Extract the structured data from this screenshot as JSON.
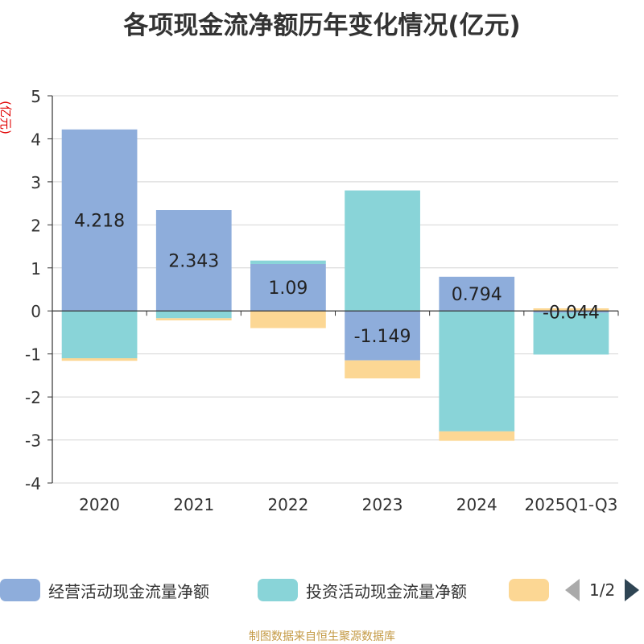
{
  "chart_data": {
    "type": "bar",
    "stacked": true,
    "title": "各项现金流净额历年变化情况(亿元)",
    "ylabel": "(亿元)",
    "xlabel": "",
    "ylim": [
      -4,
      5
    ],
    "yticks": [
      5,
      4,
      3,
      2,
      1,
      0,
      -1,
      -2,
      -3,
      -4
    ],
    "grid": true,
    "categories": [
      "2020",
      "2021",
      "2022",
      "2023",
      "2024",
      "2025Q1-Q3"
    ],
    "series": [
      {
        "name": "经营活动现金流量净额",
        "color": "#8eaddb",
        "values": [
          4.218,
          2.343,
          1.09,
          -1.149,
          0.794,
          -0.044
        ],
        "labels": [
          "4.218",
          "2.343",
          "1.09",
          "-1.149",
          "0.794",
          "-0.044"
        ]
      },
      {
        "name": "投资活动现金流量净额",
        "color": "#89d4d8",
        "values": [
          -1.1,
          -0.17,
          0.08,
          2.8,
          -2.8,
          -0.97
        ]
      },
      {
        "name": "",
        "color": "#fcd794",
        "values": [
          -0.06,
          -0.05,
          -0.4,
          -0.42,
          -0.22,
          0.06
        ]
      }
    ]
  },
  "legend": {
    "pager": "1/2"
  },
  "source_note": "制图数据来自恒生聚源数据库"
}
